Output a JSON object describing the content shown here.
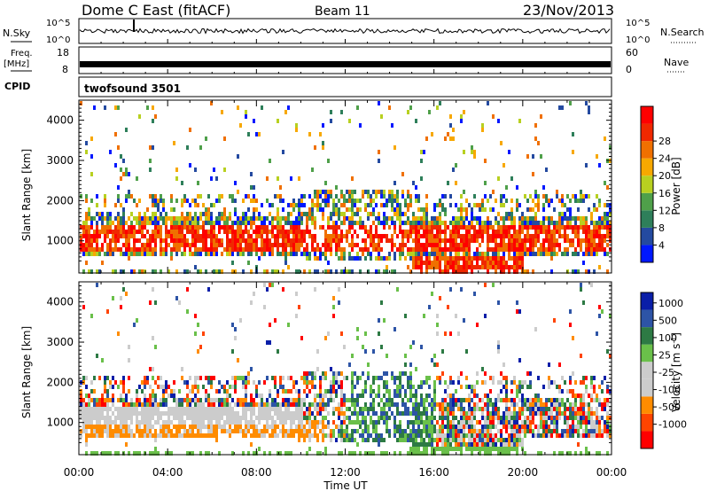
{
  "header": {
    "title": "Dome C East (fitACF)",
    "beam": "Beam 11",
    "date": "23/Nov/2013"
  },
  "strips": {
    "nsky": {
      "left_label": "N.Sky",
      "right_label": "N.Search",
      "left_ticks": [
        "10^5",
        "10^0"
      ],
      "right_ticks": [
        "10^5",
        "10^0"
      ]
    },
    "freq": {
      "left_label_1": "Freq.",
      "left_label_2": "[MHz]",
      "left_ticks": [
        "18",
        "8"
      ],
      "right_label": "Nave",
      "right_ticks": [
        "60",
        "0"
      ]
    },
    "cpid": {
      "label": "CPID",
      "value": "twofsound 3501"
    }
  },
  "colors": {
    "power": [
      "#0018ff",
      "#244aa0",
      "#2e7f5a",
      "#4fa04a",
      "#b8d020",
      "#f7a800",
      "#f07000",
      "#f02800",
      "#ff0000"
    ],
    "velocity": [
      "#ff0000",
      "#ff4400",
      "#ff8c00",
      "#cccccc",
      "#cccccc",
      "#6ac04a",
      "#2d7a44",
      "#2d54a6",
      "#0a1ea8"
    ]
  },
  "chart_data": [
    {
      "type": "heatmap",
      "panel": "power",
      "ylabel": "Slant Range [km]",
      "yticks": [
        1000,
        2000,
        3000,
        4000
      ],
      "ylim": [
        200,
        4500
      ],
      "xlim": [
        0,
        24
      ],
      "colorbar": {
        "label": "Power [dB]",
        "ticks": [
          "4",
          "8",
          "12",
          "16",
          "20",
          "24",
          "28"
        ]
      }
    },
    {
      "type": "heatmap",
      "panel": "velocity",
      "ylabel": "Slant Range [km]",
      "yticks": [
        1000,
        2000,
        3000,
        4000
      ],
      "ylim": [
        200,
        4500
      ],
      "xlim": [
        0,
        24
      ],
      "xticks": [
        "00:00",
        "04:00",
        "08:00",
        "12:00",
        "16:00",
        "20:00",
        "00:00"
      ],
      "xlabel": "Time UT",
      "colorbar": {
        "label": "Velocity [m s^-1]",
        "ticks": [
          "1000",
          "500",
          "100",
          "25",
          "-25",
          "-100",
          "-500",
          "-1000"
        ]
      }
    }
  ]
}
